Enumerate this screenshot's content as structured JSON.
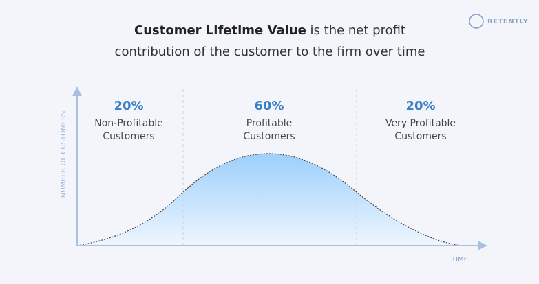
{
  "header": {
    "title_bold": "Customer Lifetime Value",
    "title_rest": "is the net profit",
    "title_line2": "contribution of the customer to the firm over time",
    "brand": "RETENTLY"
  },
  "axes": {
    "y_label": "NUMBER OF CUSTOMERS",
    "x_label": "TIME"
  },
  "segments": [
    {
      "percent": "20%",
      "lines": [
        "Non-Profitable",
        "Customers"
      ]
    },
    {
      "percent": "60%",
      "lines": [
        "Profitable",
        "Customers"
      ]
    },
    {
      "percent": "20%",
      "lines": [
        "Very Profitable",
        "Customers"
      ]
    }
  ]
}
